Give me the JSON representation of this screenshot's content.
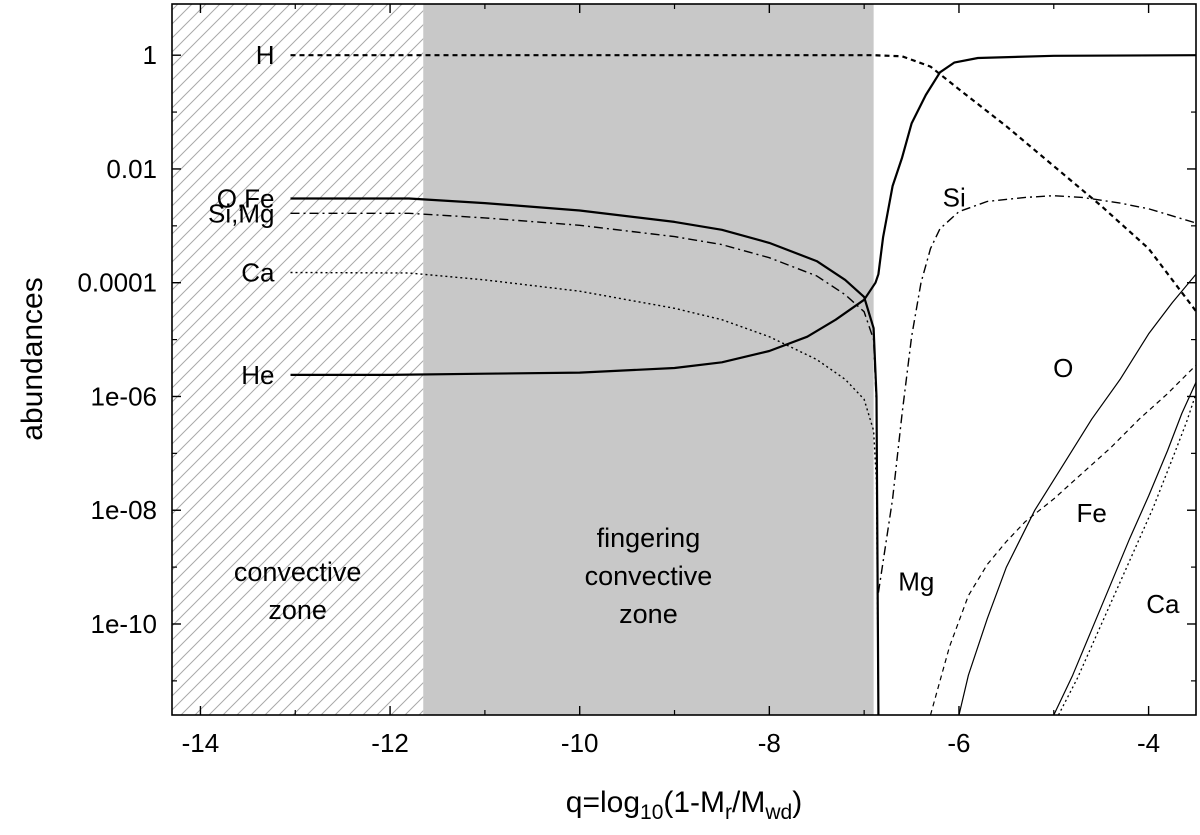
{
  "chart_data": {
    "type": "line",
    "title": "",
    "xlabel": "q=log10(1-Mr/Mwd)",
    "xlabel_parts": {
      "main": "q=log",
      "sub1": "10",
      "mid1": "(1-M",
      "sub2": "r",
      "mid2": "/M",
      "sub3": "wd",
      "end": ")"
    },
    "ylabel": "abundances",
    "xlim": [
      -14.3,
      -3.5
    ],
    "ylim_log10": [
      -11.6,
      0.9
    ],
    "y_scale": "log",
    "grid": false,
    "x_ticks": [
      -14,
      -12,
      -10,
      -8,
      -6,
      -4
    ],
    "x_tick_labels": [
      "-14",
      "-12",
      "-10",
      "-8",
      "-6",
      "-4"
    ],
    "y_ticks_log10": [
      0,
      -2,
      -4,
      -6,
      -8,
      -10
    ],
    "y_tick_labels": [
      "1",
      "0.01",
      "0.0001",
      "1e-06",
      "1e-08",
      "1e-10"
    ],
    "regions": [
      {
        "name": "convective zone",
        "lines": [
          "convective",
          "zone"
        ],
        "x_range": [
          -14.3,
          -11.65
        ],
        "fill": "hatch"
      },
      {
        "name": "fingering convective zone",
        "lines": [
          "fingering",
          "convective",
          "zone"
        ],
        "x_range": [
          -11.65,
          -6.9
        ],
        "fill": "#c8c8c8"
      }
    ],
    "series": [
      {
        "name": "H",
        "style": "dashed",
        "width": 2.2,
        "label_at": {
          "x": -13.05,
          "y_log10": 0
        },
        "points": [
          [
            -13.05,
            0
          ],
          [
            -6.9,
            0
          ],
          [
            -6.6,
            -0.02
          ],
          [
            -6.3,
            -0.2
          ],
          [
            -6.0,
            -0.6
          ],
          [
            -5.5,
            -1.25
          ],
          [
            -5.0,
            -1.95
          ],
          [
            -4.5,
            -2.65
          ],
          [
            -4.0,
            -3.4
          ],
          [
            -3.5,
            -4.5
          ]
        ]
      },
      {
        "name": "He",
        "style": "solid",
        "width": 2.2,
        "label_at": {
          "x": -13.05,
          "y_log10": -5.62
        },
        "points": [
          [
            -13.05,
            -5.62
          ],
          [
            -12.0,
            -5.62
          ],
          [
            -11.0,
            -5.6
          ],
          [
            -10.0,
            -5.58
          ],
          [
            -9.0,
            -5.5
          ],
          [
            -8.5,
            -5.4
          ],
          [
            -8.0,
            -5.2
          ],
          [
            -7.6,
            -4.95
          ],
          [
            -7.3,
            -4.65
          ],
          [
            -7.0,
            -4.3
          ],
          [
            -6.88,
            -4.0
          ],
          [
            -6.85,
            -3.85
          ],
          [
            -6.8,
            -3.2
          ],
          [
            -6.7,
            -2.3
          ],
          [
            -6.6,
            -1.8
          ],
          [
            -6.5,
            -1.2
          ],
          [
            -6.35,
            -0.7
          ],
          [
            -6.2,
            -0.3
          ],
          [
            -6.05,
            -0.13
          ],
          [
            -5.8,
            -0.05
          ],
          [
            -5.0,
            -0.01
          ],
          [
            -3.5,
            0
          ]
        ]
      },
      {
        "name": "O,Fe",
        "style": "solid",
        "width": 2.2,
        "label_at": {
          "x": -13.05,
          "y_log10": -2.52
        },
        "points": [
          [
            -13.05,
            -2.52
          ],
          [
            -11.8,
            -2.52
          ],
          [
            -11.0,
            -2.6
          ],
          [
            -10.0,
            -2.73
          ],
          [
            -9.0,
            -2.93
          ],
          [
            -8.5,
            -3.07
          ],
          [
            -8.0,
            -3.3
          ],
          [
            -7.5,
            -3.62
          ],
          [
            -7.2,
            -3.95
          ],
          [
            -7.0,
            -4.25
          ],
          [
            -6.9,
            -4.8
          ],
          [
            -6.87,
            -6.0
          ],
          [
            -6.85,
            -11.6
          ]
        ]
      },
      {
        "name": "Si,Mg",
        "style": "dashdot",
        "width": 1.4,
        "label_at": {
          "x": -13.05,
          "y_log10": -2.78
        },
        "points": [
          [
            -13.05,
            -2.78
          ],
          [
            -11.8,
            -2.78
          ],
          [
            -11.0,
            -2.86
          ],
          [
            -10.0,
            -2.99
          ],
          [
            -9.0,
            -3.19
          ],
          [
            -8.5,
            -3.33
          ],
          [
            -8.0,
            -3.56
          ],
          [
            -7.5,
            -3.88
          ],
          [
            -7.2,
            -4.21
          ],
          [
            -7.0,
            -4.51
          ],
          [
            -6.9,
            -5.0
          ],
          [
            -6.87,
            -6.2
          ],
          [
            -6.85,
            -11.6
          ]
        ]
      },
      {
        "name": "Ca",
        "style": "dotted",
        "width": 1.4,
        "label_at": {
          "x": -13.05,
          "y_log10": -3.82
        },
        "points": [
          [
            -13.05,
            -3.82
          ],
          [
            -11.8,
            -3.83
          ],
          [
            -11.0,
            -3.95
          ],
          [
            -10.0,
            -4.15
          ],
          [
            -9.0,
            -4.45
          ],
          [
            -8.5,
            -4.65
          ],
          [
            -8.0,
            -4.95
          ],
          [
            -7.5,
            -5.35
          ],
          [
            -7.2,
            -5.7
          ],
          [
            -7.0,
            -6.05
          ],
          [
            -6.9,
            -6.6
          ],
          [
            -6.87,
            -7.5
          ],
          [
            -6.85,
            -11.6
          ]
        ]
      },
      {
        "name": "Si",
        "style": "dashdot",
        "width": 1.4,
        "label_at": {
          "x": -6.05,
          "y_log10": -2.5
        },
        "points": [
          [
            -6.85,
            -9.45
          ],
          [
            -6.7,
            -7.8
          ],
          [
            -6.6,
            -6.3
          ],
          [
            -6.5,
            -4.95
          ],
          [
            -6.4,
            -4.0
          ],
          [
            -6.3,
            -3.4
          ],
          [
            -6.2,
            -3.05
          ],
          [
            -6.0,
            -2.75
          ],
          [
            -5.7,
            -2.57
          ],
          [
            -5.3,
            -2.5
          ],
          [
            -5.0,
            -2.47
          ],
          [
            -4.7,
            -2.5
          ],
          [
            -4.3,
            -2.6
          ],
          [
            -4.0,
            -2.7
          ],
          [
            -3.5,
            -2.95
          ]
        ]
      },
      {
        "name": "O",
        "style": "solid",
        "width": 1.2,
        "label_at": {
          "x": -4.9,
          "y_log10": -5.5
        },
        "points": [
          [
            -6.0,
            -11.6
          ],
          [
            -5.9,
            -10.9
          ],
          [
            -5.7,
            -9.9
          ],
          [
            -5.5,
            -9.0
          ],
          [
            -5.2,
            -8.0
          ],
          [
            -4.9,
            -7.2
          ],
          [
            -4.6,
            -6.4
          ],
          [
            -4.3,
            -5.7
          ],
          [
            -4.0,
            -4.9
          ],
          [
            -3.75,
            -4.35
          ],
          [
            -3.5,
            -3.85
          ]
        ]
      },
      {
        "name": "Mg",
        "style": "dashed",
        "width": 1.2,
        "label_at": {
          "x": -6.45,
          "y_log10": -9.25
        },
        "points": [
          [
            -6.3,
            -11.6
          ],
          [
            -6.1,
            -10.4
          ],
          [
            -5.9,
            -9.5
          ],
          [
            -5.7,
            -8.95
          ],
          [
            -5.5,
            -8.55
          ],
          [
            -5.3,
            -8.2
          ],
          [
            -5.0,
            -7.8
          ],
          [
            -4.7,
            -7.35
          ],
          [
            -4.4,
            -6.9
          ],
          [
            -4.1,
            -6.4
          ],
          [
            -3.8,
            -5.95
          ],
          [
            -3.5,
            -5.45
          ]
        ]
      },
      {
        "name": "Fe",
        "style": "solid",
        "width": 1.2,
        "label_at": {
          "x": -4.6,
          "y_log10": -8.05
        },
        "points": [
          [
            -5.0,
            -11.6
          ],
          [
            -4.8,
            -10.9
          ],
          [
            -4.6,
            -10.1
          ],
          [
            -4.4,
            -9.3
          ],
          [
            -4.2,
            -8.5
          ],
          [
            -4.0,
            -7.75
          ],
          [
            -3.8,
            -6.95
          ],
          [
            -3.65,
            -6.3
          ],
          [
            -3.5,
            -5.75
          ]
        ]
      },
      {
        "name": "Ca",
        "style": "dotted",
        "width": 1.3,
        "label_at": {
          "x": -3.85,
          "y_log10": -9.65
        },
        "points": [
          [
            -4.95,
            -11.6
          ],
          [
            -4.75,
            -10.95
          ],
          [
            -4.55,
            -10.2
          ],
          [
            -4.35,
            -9.45
          ],
          [
            -4.15,
            -8.7
          ],
          [
            -3.95,
            -7.95
          ],
          [
            -3.75,
            -7.1
          ],
          [
            -3.6,
            -6.45
          ],
          [
            -3.5,
            -5.95
          ]
        ]
      }
    ]
  }
}
